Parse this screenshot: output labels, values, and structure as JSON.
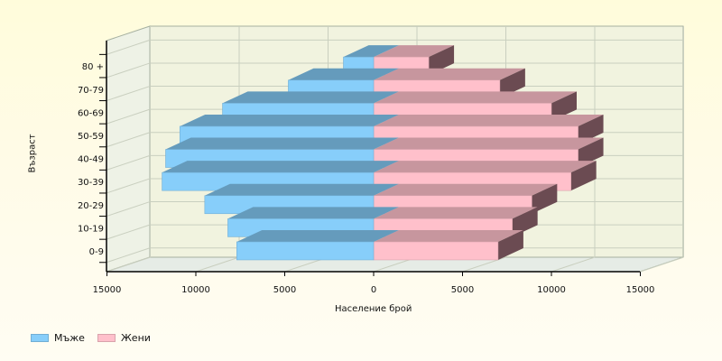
{
  "chart_data": {
    "type": "bar",
    "orientation": "horizontal",
    "style": "3d-population-pyramid",
    "xlabel": "Население брой",
    "ylabel": "Възраст",
    "categories": [
      "0-9",
      "10-19",
      "20-29",
      "30-39",
      "40-49",
      "50-59",
      "60-69",
      "70-79",
      "80 +"
    ],
    "series": [
      {
        "name": "Мъже",
        "color": "#87cefa",
        "side": "left",
        "values": [
          7700,
          8200,
          9500,
          11900,
          11700,
          10900,
          8500,
          4800,
          1700
        ]
      },
      {
        "name": "Жени",
        "color": "#ffc0cb",
        "side": "right",
        "values": [
          7000,
          7800,
          8900,
          11100,
          11500,
          11500,
          10000,
          7100,
          3100
        ]
      }
    ],
    "x_ticks": [
      "15000",
      "10000",
      "5000",
      "0",
      "5000",
      "10000",
      "15000"
    ],
    "xlim": [
      -15000,
      15000
    ],
    "grid": true,
    "legend": "bottom-left"
  }
}
